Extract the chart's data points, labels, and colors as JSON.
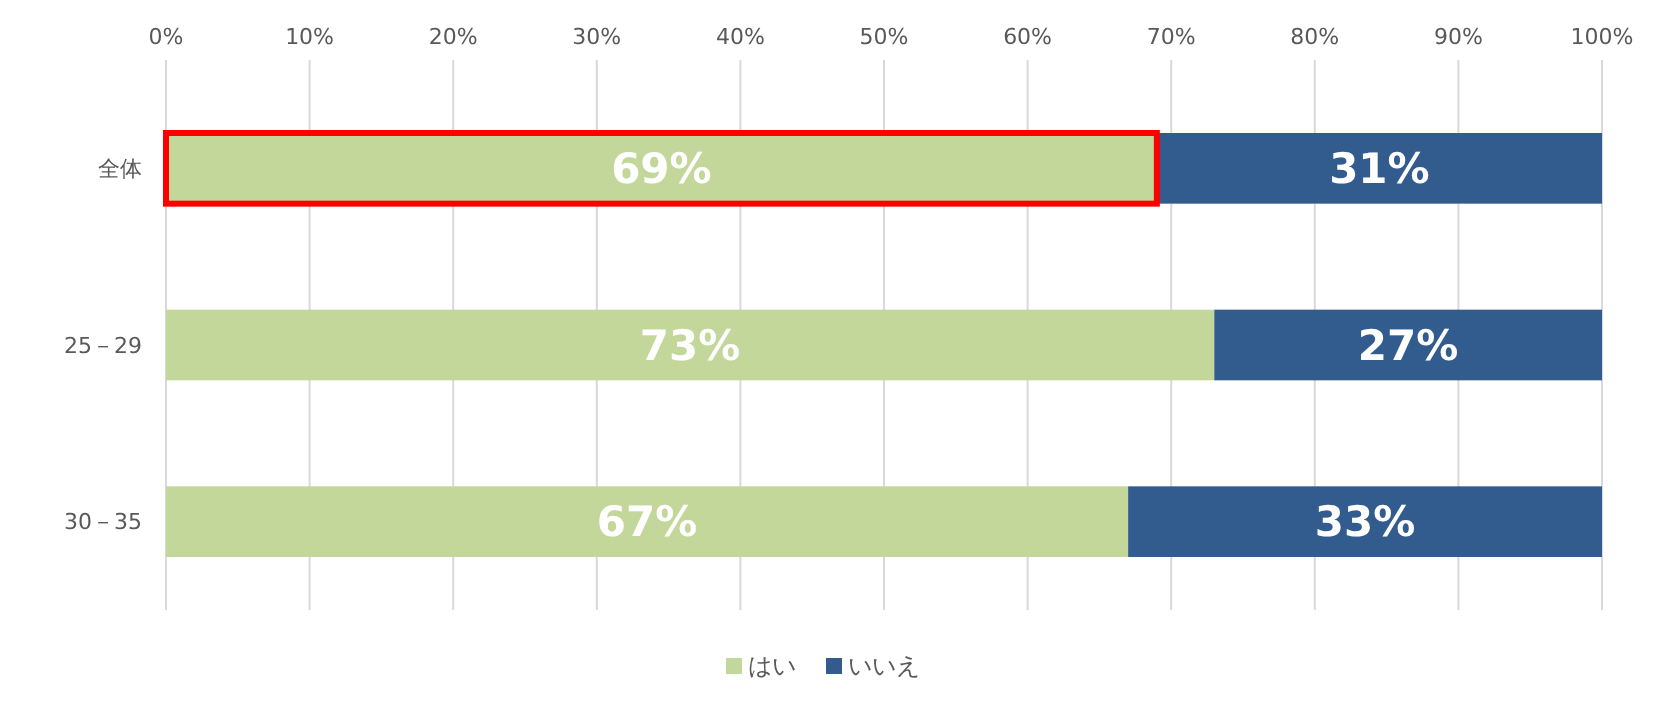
{
  "chart_data": {
    "type": "bar",
    "orientation": "horizontal",
    "stacked": true,
    "categories": [
      "全体",
      "25－29",
      "30－35"
    ],
    "series": [
      {
        "name": "はい",
        "color": "#c4d79b",
        "values": [
          69,
          73,
          67
        ],
        "value_labels": [
          "69%",
          "73%",
          "67%"
        ]
      },
      {
        "name": "いいえ",
        "color": "#335c8e",
        "values": [
          31,
          27,
          33
        ],
        "value_labels": [
          "31%",
          "27%",
          "33%"
        ]
      }
    ],
    "xlim": [
      0,
      100
    ],
    "xticks": [
      {
        "value": 0,
        "label": "0%"
      },
      {
        "value": 10,
        "label": "10%"
      },
      {
        "value": 20,
        "label": "20%"
      },
      {
        "value": 30,
        "label": "30%"
      },
      {
        "value": 40,
        "label": "40%"
      },
      {
        "value": 50,
        "label": "50%"
      },
      {
        "value": 60,
        "label": "60%"
      },
      {
        "value": 70,
        "label": "70%"
      },
      {
        "value": 80,
        "label": "80%"
      },
      {
        "value": 90,
        "label": "90%"
      },
      {
        "value": 100,
        "label": "100%"
      }
    ],
    "grid": "x",
    "legend": "bottom"
  }
}
